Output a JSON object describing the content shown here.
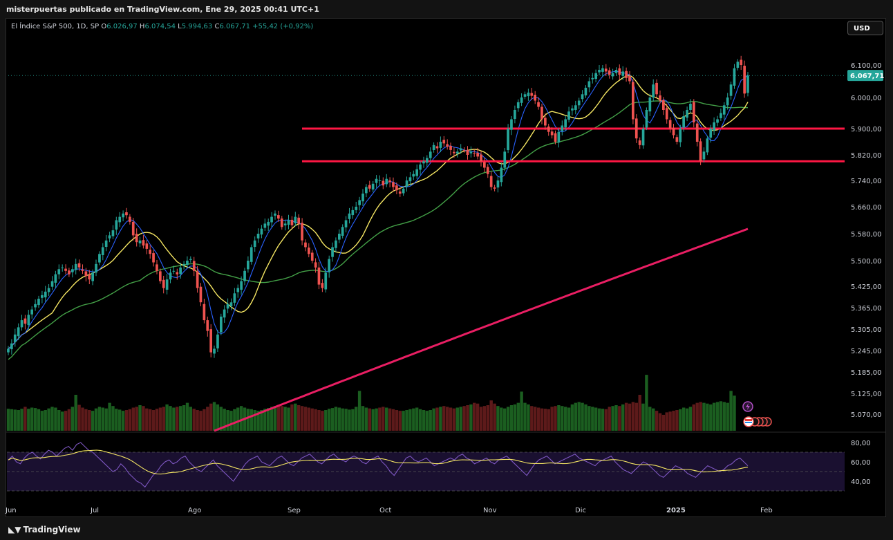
{
  "published_line": "misterpuertas publicado en TradingView.com, Ene 29, 2025 00:41 UTC+1",
  "legend": {
    "symbol": "El Índice S&P 500, 1D, SP",
    "o_label": "O",
    "o_value": "6.026,97",
    "h_label": "H",
    "h_value": "6.074,54",
    "l_label": "L",
    "l_value": "5.994,63",
    "c_label": "C",
    "c_value": "6.067,71",
    "change": "+55,42 (+0,92%)"
  },
  "currency_button": "USD",
  "last_price_label": "6.067,71",
  "brand": "TradingView",
  "colors": {
    "up": "#26a69a",
    "down": "#ef5350",
    "ma_fast": "#2962ff",
    "ma_mid": "#f5e663",
    "ma_slow": "#43a047",
    "ma_200": "#e91e63",
    "levels": "#ff1744",
    "rsi": "#7e57c2",
    "rsi_ma": "#f5e663"
  },
  "chart_data": [
    {
      "type": "candlestick",
      "price_ticks": [
        "6.100,00",
        "6.000,00",
        "5.900,00",
        "5.820,00",
        "5.740,00",
        "5.660,00",
        "5.580,00",
        "5.500,00",
        "5.425,00",
        "5.365,00",
        "5.305,00",
        "5.245,00",
        "5.185,00",
        "5.125,00",
        "5.070,00"
      ],
      "x_ticks": [
        "Jun",
        "Jul",
        "Ago",
        "Sep",
        "Oct",
        "Nov",
        "Dic",
        "2025",
        "Feb"
      ],
      "horizontal_levels": [
        5900,
        5800
      ],
      "last_close": 6067.71,
      "close_series": [
        5250,
        5265,
        5290,
        5310,
        5330,
        5320,
        5345,
        5360,
        5375,
        5390,
        5400,
        5410,
        5420,
        5440,
        5460,
        5475,
        5480,
        5470,
        5460,
        5475,
        5490,
        5480,
        5470,
        5455,
        5445,
        5465,
        5490,
        5520,
        5540,
        5560,
        5575,
        5590,
        5620,
        5630,
        5640,
        5635,
        5615,
        5575,
        5555,
        5560,
        5545,
        5535,
        5520,
        5495,
        5470,
        5440,
        5420,
        5445,
        5465,
        5470,
        5460,
        5480,
        5490,
        5500,
        5505,
        5470,
        5420,
        5380,
        5330,
        5300,
        5240,
        5250,
        5290,
        5340,
        5360,
        5375,
        5380,
        5405,
        5420,
        5440,
        5470,
        5500,
        5540,
        5560,
        5580,
        5595,
        5610,
        5615,
        5630,
        5640,
        5625,
        5600,
        5610,
        5620,
        5605,
        5630,
        5610,
        5560,
        5540,
        5520,
        5500,
        5480,
        5430,
        5420,
        5465,
        5505,
        5540,
        5560,
        5580,
        5600,
        5620,
        5640,
        5650,
        5660,
        5680,
        5700,
        5720,
        5715,
        5730,
        5745,
        5740,
        5725,
        5745,
        5735,
        5720,
        5710,
        5700,
        5715,
        5740,
        5750,
        5760,
        5775,
        5790,
        5800,
        5810,
        5830,
        5850,
        5840,
        5860,
        5855,
        5845,
        5835,
        5825,
        5830,
        5840,
        5835,
        5820,
        5830,
        5825,
        5815,
        5800,
        5780,
        5760,
        5720,
        5715,
        5740,
        5780,
        5830,
        5900,
        5930,
        5960,
        5985,
        6000,
        6010,
        6015,
        6005,
        5990,
        5970,
        5930,
        5910,
        5890,
        5880,
        5860,
        5890,
        5910,
        5930,
        5955,
        5965,
        5975,
        5990,
        6010,
        6030,
        6050,
        6060,
        6075,
        6085,
        6090,
        6080,
        6070,
        6075,
        6085,
        6070,
        6080,
        6060,
        6050,
        5930,
        5870,
        5850,
        5900,
        5960,
        6000,
        6040,
        6010,
        5990,
        5960,
        5930,
        5900,
        5880,
        5860,
        5900,
        5940,
        5960,
        5980,
        5920,
        5860,
        5800,
        5830,
        5870,
        5900,
        5920,
        5930,
        5950,
        5975,
        6000,
        6040,
        6090,
        6110,
        6100,
        6012,
        6067.71
      ]
    },
    {
      "type": "bar",
      "name": "volume",
      "relative_values": [
        0.55,
        0.54,
        0.53,
        0.52,
        0.55,
        0.6,
        0.55,
        0.58,
        0.57,
        0.54,
        0.5,
        0.52,
        0.56,
        0.6,
        0.58,
        0.52,
        0.48,
        0.5,
        0.54,
        0.6,
        0.9,
        0.65,
        0.58,
        0.54,
        0.52,
        0.5,
        0.56,
        0.6,
        0.58,
        0.56,
        0.7,
        0.62,
        0.55,
        0.53,
        0.5,
        0.52,
        0.54,
        0.58,
        0.6,
        0.64,
        0.62,
        0.56,
        0.54,
        0.52,
        0.55,
        0.58,
        0.6,
        0.66,
        0.62,
        0.58,
        0.6,
        0.62,
        0.64,
        0.7,
        0.6,
        0.55,
        0.52,
        0.5,
        0.54,
        0.6,
        0.68,
        0.72,
        0.66,
        0.6,
        0.55,
        0.52,
        0.5,
        0.54,
        0.58,
        0.62,
        0.58,
        0.55,
        0.54,
        0.52,
        0.5,
        0.52,
        0.55,
        0.57,
        0.6,
        0.62,
        0.65,
        0.62,
        0.6,
        0.58,
        0.66,
        0.68,
        0.64,
        0.62,
        0.6,
        0.58,
        0.56,
        0.54,
        0.52,
        0.5,
        0.52,
        0.55,
        0.57,
        0.6,
        0.58,
        0.56,
        0.55,
        0.53,
        0.54,
        0.6,
        1.0,
        0.62,
        0.58,
        0.56,
        0.54,
        0.56,
        0.58,
        0.6,
        0.58,
        0.56,
        0.54,
        0.52,
        0.5,
        0.5,
        0.52,
        0.54,
        0.56,
        0.58,
        0.54,
        0.52,
        0.5,
        0.52,
        0.56,
        0.58,
        0.6,
        0.62,
        0.6,
        0.58,
        0.56,
        0.58,
        0.6,
        0.62,
        0.64,
        0.66,
        0.7,
        0.68,
        0.6,
        0.62,
        0.64,
        0.76,
        0.68,
        0.62,
        0.58,
        0.56,
        0.6,
        0.64,
        0.66,
        0.7,
        0.98,
        0.7,
        0.66,
        0.62,
        0.6,
        0.58,
        0.56,
        0.55,
        0.54,
        0.6,
        0.62,
        0.64,
        0.62,
        0.6,
        0.58,
        0.66,
        0.7,
        0.72,
        0.7,
        0.66,
        0.62,
        0.6,
        0.58,
        0.56,
        0.55,
        0.54,
        0.6,
        0.62,
        0.64,
        0.62,
        0.66,
        0.7,
        0.68,
        0.72,
        0.7,
        0.9,
        0.68,
        1.4,
        0.6,
        0.56,
        0.5,
        0.44,
        0.4,
        0.46,
        0.48,
        0.5,
        0.52,
        0.54,
        0.58,
        0.56,
        0.6,
        0.66,
        0.7,
        0.72,
        0.7,
        0.68,
        0.66,
        0.7,
        0.72,
        0.74,
        0.72,
        0.7,
        1.0,
        0.88
      ]
    },
    {
      "type": "line",
      "name": "rsi",
      "y_ticks": [
        "80,00",
        "60,00",
        "40,00"
      ],
      "ylim": [
        20,
        90
      ],
      "band": [
        70,
        30
      ],
      "mid": 50,
      "values": [
        62,
        66,
        60,
        58,
        64,
        68,
        70,
        66,
        63,
        68,
        72,
        70,
        66,
        70,
        74,
        76,
        72,
        78,
        80,
        76,
        72,
        70,
        66,
        62,
        58,
        54,
        50,
        52,
        58,
        54,
        48,
        44,
        40,
        38,
        34,
        40,
        46,
        50,
        56,
        60,
        62,
        58,
        60,
        64,
        66,
        60,
        56,
        52,
        50,
        54,
        58,
        62,
        56,
        52,
        48,
        44,
        40,
        46,
        52,
        58,
        62,
        64,
        66,
        60,
        58,
        56,
        60,
        64,
        66,
        62,
        58,
        56,
        60,
        64,
        66,
        68,
        64,
        60,
        58,
        62,
        66,
        68,
        64,
        62,
        60,
        64,
        66,
        64,
        60,
        58,
        62,
        64,
        66,
        60,
        56,
        50,
        46,
        52,
        58,
        64,
        66,
        62,
        60,
        62,
        64,
        60,
        56,
        58,
        60,
        62,
        64,
        62,
        66,
        68,
        64,
        62,
        58,
        60,
        62,
        64,
        60,
        58,
        62,
        64,
        66,
        62,
        58,
        54,
        50,
        46,
        52,
        58,
        62,
        64,
        66,
        62,
        58,
        60,
        62,
        64,
        66,
        68,
        64,
        62,
        60,
        58,
        56,
        60,
        62,
        64,
        66,
        60,
        56,
        52,
        50,
        48,
        52,
        56,
        60,
        58,
        54,
        50,
        46,
        44,
        48,
        52,
        56,
        54,
        52,
        48,
        46,
        44,
        48,
        52,
        56,
        54,
        52,
        50,
        52,
        56,
        58,
        62,
        64,
        60,
        56
      ]
    }
  ]
}
